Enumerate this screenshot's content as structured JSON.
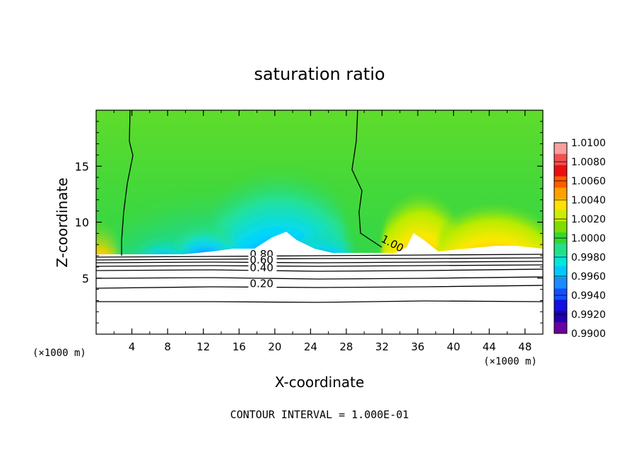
{
  "chart_data": {
    "type": "heatmap",
    "title": "saturation ratio",
    "xlabel": "X-coordinate",
    "ylabel": "Z-coordinate",
    "x_unit_left": "(×1000 m)",
    "x_unit_right": "(×1000 m)",
    "footer": "CONTOUR INTERVAL = 1.000E-01",
    "xlim": [
      0,
      50
    ],
    "ylim": [
      0,
      20
    ],
    "x_ticks": [
      4,
      8,
      12,
      16,
      20,
      24,
      28,
      32,
      36,
      40,
      44,
      48
    ],
    "y_ticks": [
      5,
      10,
      15
    ],
    "colorbar": {
      "labels": [
        "1.0100",
        "1.0080",
        "1.0060",
        "1.0040",
        "1.0020",
        "1.0000",
        "0.9980",
        "0.9960",
        "0.9940",
        "0.9920",
        "0.9900"
      ],
      "colors": [
        "#f7a0a0",
        "#f25050",
        "#ea1010",
        "#ff5a00",
        "#ffa000",
        "#ffe000",
        "#ccee00",
        "#7ddd00",
        "#33d633",
        "#22e088",
        "#00e8d8",
        "#00c8ff",
        "#1a8cff",
        "#1050ff",
        "#1010e0",
        "#2000b0",
        "#6a00a0"
      ]
    },
    "contour_labels": [
      {
        "text": "1.00",
        "x": 31.8,
        "z": 8.3
      },
      {
        "text": "0.80",
        "x": 17.2,
        "z": 6.8
      },
      {
        "text": "0.60",
        "x": 17.2,
        "z": 6.3
      },
      {
        "text": "0.40",
        "x": 17.2,
        "z": 5.6
      },
      {
        "text": "0.20",
        "x": 17.2,
        "z": 4.2
      }
    ]
  }
}
